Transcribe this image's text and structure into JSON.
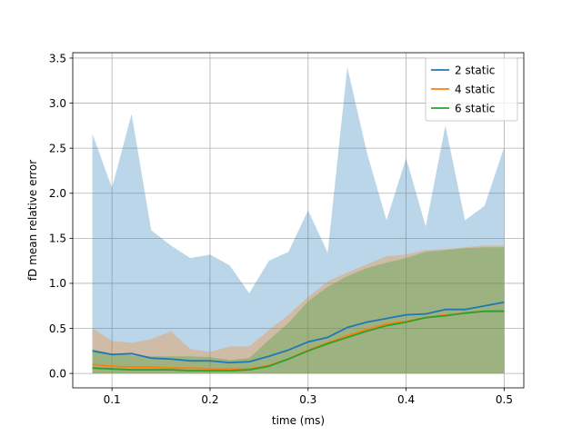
{
  "chart_data": {
    "type": "line",
    "title": "",
    "xlabel": "time (ms)",
    "ylabel": "fD mean relative error",
    "xlim": [
      0.06,
      0.52
    ],
    "ylim": [
      -0.16,
      3.56
    ],
    "xticks": [
      0.1,
      0.2,
      0.3,
      0.4,
      0.5
    ],
    "xtick_labels": [
      "0.1",
      "0.2",
      "0.3",
      "0.4",
      "0.5"
    ],
    "yticks": [
      0.0,
      0.5,
      1.0,
      1.5,
      2.0,
      2.5,
      3.0,
      3.5
    ],
    "ytick_labels": [
      "0.0",
      "0.5",
      "1.0",
      "1.5",
      "2.0",
      "2.5",
      "3.0",
      "3.5"
    ],
    "grid": true,
    "legend_position": "upper right",
    "x": [
      0.08,
      0.1,
      0.12,
      0.14,
      0.16,
      0.18,
      0.2,
      0.22,
      0.24,
      0.26,
      0.28,
      0.3,
      0.32,
      0.34,
      0.36,
      0.38,
      0.4,
      0.42,
      0.44,
      0.46,
      0.48,
      0.5
    ],
    "series": [
      {
        "name": "2 static",
        "color": "#1f77b4",
        "values": [
          0.25,
          0.21,
          0.22,
          0.17,
          0.16,
          0.14,
          0.14,
          0.12,
          0.13,
          0.19,
          0.26,
          0.35,
          0.4,
          0.51,
          0.57,
          0.61,
          0.65,
          0.66,
          0.71,
          0.71,
          0.75,
          0.79
        ],
        "band_upper": [
          2.66,
          2.06,
          2.88,
          1.59,
          1.42,
          1.28,
          1.32,
          1.2,
          0.89,
          1.25,
          1.35,
          1.81,
          1.34,
          3.4,
          2.45,
          1.7,
          2.39,
          1.63,
          2.75,
          1.7,
          1.86,
          2.51
        ],
        "band_lower": [
          0.0,
          0.0,
          0.0,
          0.0,
          0.0,
          0.0,
          0.0,
          0.0,
          0.0,
          0.0,
          0.0,
          0.0,
          0.0,
          0.0,
          0.0,
          0.0,
          0.0,
          0.0,
          0.0,
          0.0,
          0.0,
          0.0
        ]
      },
      {
        "name": "4 static",
        "color": "#ff7f0e",
        "values": [
          0.1,
          0.08,
          0.07,
          0.07,
          0.06,
          0.06,
          0.05,
          0.05,
          0.05,
          0.09,
          0.16,
          0.26,
          0.34,
          0.42,
          0.49,
          0.55,
          0.58,
          0.62,
          0.65,
          0.67,
          0.69,
          0.7
        ],
        "band_upper": [
          0.5,
          0.36,
          0.34,
          0.38,
          0.47,
          0.27,
          0.24,
          0.3,
          0.3,
          0.48,
          0.65,
          0.85,
          1.02,
          1.12,
          1.21,
          1.3,
          1.32,
          1.37,
          1.38,
          1.4,
          1.42,
          1.42
        ],
        "band_lower": [
          0.0,
          0.0,
          0.0,
          0.0,
          0.0,
          0.0,
          0.0,
          0.0,
          0.0,
          0.0,
          0.0,
          0.0,
          0.0,
          0.0,
          0.0,
          0.0,
          0.0,
          0.0,
          0.0,
          0.0,
          0.0,
          0.0
        ]
      },
      {
        "name": "6 static",
        "color": "#2ca02c",
        "values": [
          0.06,
          0.05,
          0.04,
          0.04,
          0.04,
          0.03,
          0.03,
          0.03,
          0.04,
          0.08,
          0.16,
          0.25,
          0.33,
          0.4,
          0.47,
          0.53,
          0.57,
          0.62,
          0.64,
          0.67,
          0.69,
          0.69
        ],
        "band_upper": [
          0.27,
          0.22,
          0.2,
          0.19,
          0.19,
          0.19,
          0.18,
          0.15,
          0.17,
          0.37,
          0.56,
          0.8,
          0.96,
          1.08,
          1.17,
          1.23,
          1.28,
          1.35,
          1.37,
          1.39,
          1.4,
          1.4
        ],
        "band_lower": [
          0.0,
          0.0,
          0.0,
          0.0,
          0.0,
          0.0,
          0.0,
          0.0,
          0.0,
          0.0,
          0.0,
          0.0,
          0.0,
          0.0,
          0.0,
          0.0,
          0.0,
          0.0,
          0.0,
          0.0,
          0.0,
          0.0
        ]
      }
    ]
  }
}
